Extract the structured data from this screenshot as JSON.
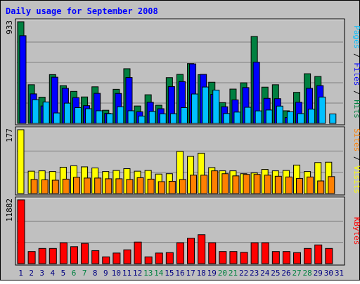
{
  "colors": {
    "background": "#c0c0c0",
    "panel": "#c0c0c0",
    "grid": "#808080",
    "title": "#0000ff",
    "hits": "#008040",
    "files": "#0000ff",
    "pages": "#00c0ff",
    "visits": "#ffff00",
    "sites": "#ff8000",
    "kbytes": "#ff0000",
    "weekend_day": "#008040",
    "weekday": "#000080"
  },
  "chart_data": {
    "type": "bar",
    "title": "Daily usage for September 2008",
    "x": [
      "1",
      "2",
      "3",
      "4",
      "5",
      "6",
      "7",
      "8",
      "9",
      "10",
      "11",
      "12",
      "13",
      "14",
      "15",
      "16",
      "17",
      "18",
      "19",
      "20",
      "21",
      "22",
      "23",
      "24",
      "25",
      "26",
      "27",
      "28",
      "29",
      "30",
      "31"
    ],
    "weekend_days": [
      "6",
      "7",
      "13",
      "14",
      "20",
      "21",
      "27",
      "28"
    ],
    "panels": [
      {
        "id": "hits_files_pages",
        "max_label": "933",
        "ylim": [
          0,
          933
        ],
        "side_labels": [
          {
            "text": "Hits",
            "color_key": "hits"
          },
          {
            "text": "Files",
            "color_key": "files"
          },
          {
            "text": "Pages",
            "color_key": "pages"
          }
        ],
        "series": [
          {
            "name": "Hits",
            "color_key": "hits",
            "values": [
              933,
              355,
              241,
              448,
              347,
              294,
              243,
              336,
              121,
              313,
              502,
              160,
              263,
              167,
              420,
              450,
              549,
              447,
              378,
              191,
              315,
              373,
              798,
              333,
              355,
              116,
              285,
              456,
              431,
              0,
              0
            ]
          },
          {
            "name": "Files",
            "color_key": "files",
            "values": [
              805,
              271,
              160,
              424,
              322,
              237,
              163,
              276,
              92,
              275,
              421,
              107,
              194,
              135,
              338,
              384,
              546,
              450,
              267,
              153,
              216,
              329,
              562,
              230,
              227,
              54,
              194,
              322,
              347,
              0,
              0
            ]
          },
          {
            "name": "Pages",
            "color_key": "pages",
            "values": [
              0,
              218,
              197,
              96,
              186,
              145,
              135,
              116,
              89,
              153,
              116,
              67,
              110,
              88,
              89,
              145,
              270,
              334,
              306,
              91,
              104,
              148,
              115,
              123,
              159,
              107,
              90,
              131,
              242,
              87,
              0
            ]
          }
        ]
      },
      {
        "id": "visits_sites",
        "max_label": "177",
        "ylim": [
          0,
          177
        ],
        "side_labels": [
          {
            "text": "Visits",
            "color_key": "visits"
          },
          {
            "text": "Sites",
            "color_key": "sites"
          }
        ],
        "series": [
          {
            "name": "Visits",
            "color_key": "visits",
            "values": [
              177,
              62,
              63,
              61,
              73,
              77,
              74,
              71,
              61,
              64,
              69,
              62,
              64,
              54,
              55,
              117,
              103,
              112,
              72,
              63,
              63,
              55,
              57,
              67,
              63,
              64,
              79,
              61,
              86,
              87,
              0
            ]
          },
          {
            "name": "Sites",
            "color_key": "sites",
            "values": [
              0,
              39,
              38,
              37,
              40,
              45,
              43,
              43,
              41,
              41,
              39,
              44,
              40,
              33,
              34,
              39,
              51,
              51,
              63,
              55,
              49,
              53,
              53,
              51,
              48,
              46,
              42,
              46,
              35,
              47,
              0
            ]
          }
        ]
      },
      {
        "id": "kbytes",
        "max_label": "11882",
        "ylim": [
          0,
          11882
        ],
        "side_labels": [
          {
            "text": "KBytes",
            "color_key": "kbytes"
          }
        ],
        "series": [
          {
            "name": "KBytes",
            "color_key": "kbytes",
            "values": [
              11882,
              2260,
              2830,
              2830,
              3890,
              3160,
              3770,
              2420,
              1270,
              1980,
              2580,
              4020,
              1270,
              1980,
              2060,
              3890,
              4740,
              5390,
              3890,
              2260,
              2260,
              2110,
              3890,
              3890,
              2260,
              2260,
              2060,
              2830,
              3490,
              2830,
              0
            ]
          }
        ]
      }
    ]
  }
}
